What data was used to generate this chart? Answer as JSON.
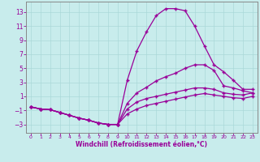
{
  "background_color": "#c8ecec",
  "grid_color": "#c0e0e0",
  "line_color": "#990099",
  "xlabel": "Windchill (Refroidissement éolien,°C)",
  "xlim": [
    -0.5,
    23.5
  ],
  "ylim": [
    -4.2,
    14.5
  ],
  "xticks": [
    0,
    1,
    2,
    3,
    4,
    5,
    6,
    7,
    8,
    9,
    10,
    11,
    12,
    13,
    14,
    15,
    16,
    17,
    18,
    19,
    20,
    21,
    22,
    23
  ],
  "yticks": [
    -3,
    -1,
    1,
    3,
    5,
    7,
    9,
    11,
    13
  ],
  "curve1_x": [
    0,
    1,
    2,
    3,
    4,
    5,
    6,
    7,
    8,
    9,
    10,
    11,
    12,
    13,
    14,
    15,
    16,
    17,
    18,
    19,
    20,
    21,
    22,
    23
  ],
  "curve1_y": [
    -0.5,
    -0.8,
    -0.9,
    -1.3,
    -1.7,
    -2.1,
    -2.4,
    -2.8,
    -3.0,
    -3.0,
    3.3,
    7.5,
    10.2,
    12.5,
    13.5,
    13.5,
    13.2,
    11.0,
    8.2,
    5.5,
    4.5,
    3.3,
    2.0,
    2.0
  ],
  "curve2_x": [
    0,
    1,
    2,
    3,
    4,
    5,
    6,
    7,
    8,
    9,
    10,
    11,
    12,
    13,
    14,
    15,
    16,
    17,
    18,
    19,
    20,
    21,
    22,
    23
  ],
  "curve2_y": [
    -0.5,
    -0.8,
    -0.9,
    -1.3,
    -1.7,
    -2.1,
    -2.4,
    -2.8,
    -3.0,
    -3.0,
    0.0,
    1.5,
    2.3,
    3.2,
    3.8,
    4.3,
    5.0,
    5.5,
    5.5,
    4.7,
    2.5,
    2.2,
    1.8,
    1.5
  ],
  "curve3_x": [
    0,
    1,
    2,
    3,
    4,
    5,
    6,
    7,
    8,
    9,
    10,
    11,
    12,
    13,
    14,
    15,
    16,
    17,
    18,
    19,
    20,
    21,
    22,
    23
  ],
  "curve3_y": [
    -0.5,
    -0.8,
    -0.9,
    -1.3,
    -1.7,
    -2.1,
    -2.4,
    -2.8,
    -3.0,
    -3.0,
    -0.8,
    0.2,
    0.7,
    1.0,
    1.3,
    1.6,
    1.9,
    2.2,
    2.2,
    2.0,
    1.5,
    1.3,
    1.2,
    1.5
  ],
  "curve4_x": [
    0,
    1,
    2,
    3,
    4,
    5,
    6,
    7,
    8,
    9,
    10,
    11,
    12,
    13,
    14,
    15,
    16,
    17,
    18,
    19,
    20,
    21,
    22,
    23
  ],
  "curve4_y": [
    -0.5,
    -0.8,
    -0.9,
    -1.3,
    -1.7,
    -2.1,
    -2.4,
    -2.8,
    -3.0,
    -3.0,
    -1.5,
    -0.8,
    -0.3,
    0.0,
    0.3,
    0.6,
    0.9,
    1.2,
    1.4,
    1.2,
    1.0,
    0.8,
    0.7,
    1.0
  ]
}
